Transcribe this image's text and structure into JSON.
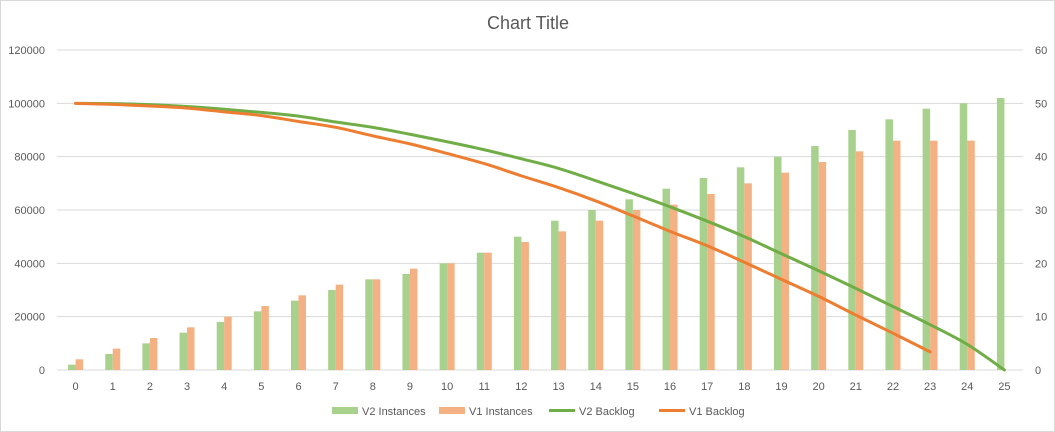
{
  "chart_data": {
    "type": "bar",
    "title": "Chart Title",
    "xlabel": "",
    "ylabel": "",
    "ylim": [
      0,
      120000
    ],
    "y2lim": [
      0,
      60
    ],
    "grid": true,
    "legend_position": "bottom",
    "categories": [
      "0",
      "1",
      "2",
      "3",
      "4",
      "5",
      "6",
      "7",
      "8",
      "9",
      "10",
      "11",
      "12",
      "13",
      "14",
      "15",
      "16",
      "17",
      "18",
      "19",
      "20",
      "21",
      "22",
      "23",
      "24",
      "25"
    ],
    "y_ticks": [
      "0",
      "20000",
      "40000",
      "60000",
      "80000",
      "100000",
      "120000"
    ],
    "y2_ticks": [
      "0",
      "10",
      "20",
      "30",
      "40",
      "50",
      "60"
    ],
    "series": [
      {
        "name": "V2 Instances",
        "kind": "bar",
        "axis": "primary",
        "color": "#a9d18e",
        "values": [
          2000,
          6000,
          10000,
          14000,
          18000,
          22000,
          26000,
          30000,
          34000,
          36000,
          40000,
          44000,
          50000,
          56000,
          60000,
          64000,
          68000,
          72000,
          76000,
          80000,
          84000,
          90000,
          94000,
          98000,
          100000,
          102000
        ]
      },
      {
        "name": "V1 Instances",
        "kind": "bar",
        "axis": "primary",
        "color": "#f4b183",
        "values": [
          4000,
          8000,
          12000,
          16000,
          20000,
          24000,
          28000,
          32000,
          34000,
          38000,
          40000,
          44000,
          48000,
          52000,
          56000,
          60000,
          62000,
          66000,
          70000,
          74000,
          78000,
          82000,
          86000,
          86000,
          86000,
          null
        ]
      },
      {
        "name": "V2 Backlog",
        "kind": "line",
        "axis": "secondary",
        "color": "#70ad47",
        "values": [
          50,
          49.95,
          49.75,
          49.4,
          48.9,
          48.3,
          47.6,
          46.5,
          45.5,
          44.2,
          42.8,
          41.3,
          39.6,
          37.8,
          35.5,
          33.1,
          30.6,
          27.9,
          25,
          21.8,
          18.6,
          15.3,
          11.9,
          8.5,
          4.8,
          0
        ]
      },
      {
        "name": "V1 Backlog",
        "kind": "line",
        "axis": "secondary",
        "color": "#ed7d31",
        "values": [
          50,
          49.8,
          49.5,
          49.1,
          48.4,
          47.7,
          46.6,
          45.5,
          43.9,
          42.4,
          40.6,
          38.7,
          36.4,
          34.2,
          31.7,
          28.9,
          26,
          23.3,
          20.2,
          17,
          13.8,
          10.3,
          6.9,
          3.4,
          null,
          null
        ]
      }
    ]
  }
}
